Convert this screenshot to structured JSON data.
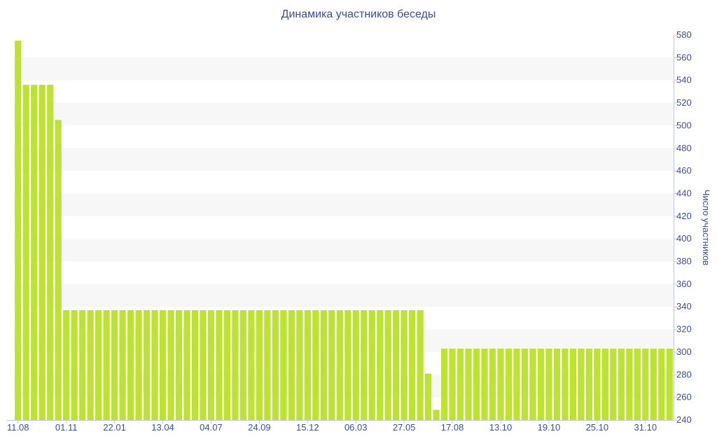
{
  "chart_data": {
    "type": "bar",
    "title": "Динамика участников беседы",
    "xlabel": "",
    "ylabel": "Число участников",
    "ylim": [
      240,
      580
    ],
    "yticks": [
      240,
      260,
      280,
      300,
      320,
      340,
      360,
      380,
      400,
      420,
      440,
      460,
      480,
      500,
      520,
      540,
      560,
      580
    ],
    "x_tick_labels": [
      {
        "label": "11.08",
        "index": 0
      },
      {
        "label": "01.11",
        "index": 6
      },
      {
        "label": "22.01",
        "index": 12
      },
      {
        "label": "13.04",
        "index": 18
      },
      {
        "label": "04.07",
        "index": 24
      },
      {
        "label": "24.09",
        "index": 30
      },
      {
        "label": "15.12",
        "index": 36
      },
      {
        "label": "06.03",
        "index": 42
      },
      {
        "label": "27.05",
        "index": 48
      },
      {
        "label": "17.08",
        "index": 54
      },
      {
        "label": "13.10",
        "index": 60
      },
      {
        "label": "19.10",
        "index": 66
      },
      {
        "label": "25.10",
        "index": 72
      },
      {
        "label": "31.10",
        "index": 78
      }
    ],
    "values": [
      575,
      536,
      536,
      536,
      536,
      505,
      337,
      337,
      337,
      337,
      337,
      337,
      337,
      337,
      337,
      337,
      337,
      337,
      337,
      337,
      337,
      337,
      337,
      337,
      337,
      337,
      337,
      337,
      337,
      337,
      337,
      337,
      337,
      337,
      337,
      337,
      337,
      337,
      337,
      337,
      337,
      337,
      337,
      337,
      337,
      337,
      337,
      337,
      337,
      337,
      337,
      281,
      249,
      303,
      303,
      303,
      303,
      303,
      303,
      303,
      303,
      303,
      303,
      303,
      303,
      303,
      303,
      303,
      303,
      303,
      303,
      303,
      303,
      303,
      303,
      303,
      303,
      303,
      303,
      303,
      303,
      303
    ],
    "grid": true,
    "bar_color": "#bde232",
    "band_color": "#f7f7f7",
    "text_color": "#3d4f8f",
    "axis_position": "right"
  }
}
